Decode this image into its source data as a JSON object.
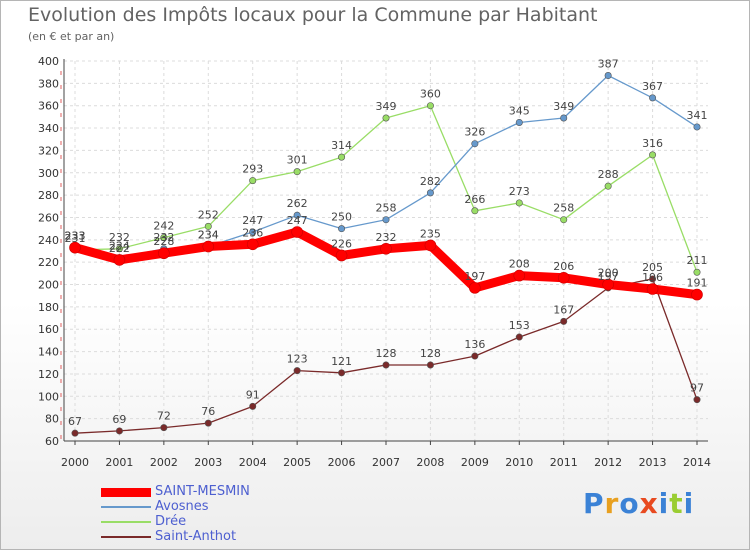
{
  "chart_data": {
    "type": "line",
    "title": "Evolution des Impôts locaux pour la Commune par Habitant",
    "subtitle": "(en € et par an)",
    "xlabel": "",
    "ylabel": "",
    "ylim": [
      60,
      400
    ],
    "y_ticks": [
      "60",
      "80",
      "100",
      "120",
      "140",
      "160",
      "180",
      "200",
      "220",
      "240",
      "260",
      "280",
      "300",
      "320",
      "340",
      "360",
      "380",
      "400"
    ],
    "categories": [
      "2000",
      "2001",
      "2002",
      "2003",
      "2004",
      "2005",
      "2006",
      "2007",
      "2008",
      "2009",
      "2010",
      "2011",
      "2012",
      "2013",
      "2014"
    ],
    "series": [
      {
        "name": "SAINT-MESMIN",
        "color": "#ff0000",
        "values": [
          233,
          222,
          228,
          234,
          236,
          247,
          226,
          232,
          235,
          197,
          208,
          206,
          200,
          196,
          191
        ],
        "labels": [
          "233",
          "222",
          "228",
          "234",
          "236",
          "247",
          "226",
          "232",
          "235",
          "197",
          "208",
          "206",
          "200",
          "196",
          "191"
        ]
      },
      {
        "name": "Avosnes",
        "color": "#6699cc",
        "values": [
          233,
          224,
          232,
          234,
          247,
          262,
          250,
          258,
          282,
          326,
          345,
          349,
          387,
          367,
          341
        ],
        "labels": [
          "233",
          "224",
          "232",
          "234",
          "247",
          "262",
          "250",
          "258",
          "282",
          "326",
          "345",
          "349",
          "387",
          "367",
          "341"
        ]
      },
      {
        "name": "Drée",
        "color": "#99dd66",
        "values": [
          231,
          232,
          242,
          252,
          293,
          301,
          314,
          349,
          360,
          266,
          273,
          258,
          288,
          316,
          211
        ],
        "labels": [
          "231",
          "232",
          "242",
          "252",
          "293",
          "301",
          "314",
          "349",
          "360",
          "266",
          "273",
          "258",
          "288",
          "316",
          "211"
        ]
      },
      {
        "name": "Saint-Anthot",
        "color": "#7a2a2a",
        "values": [
          67,
          69,
          72,
          76,
          91,
          123,
          121,
          128,
          128,
          136,
          153,
          167,
          197,
          205,
          97
        ],
        "labels": [
          "67",
          "69",
          "72",
          "76",
          "91",
          "123",
          "121",
          "128",
          "128",
          "136",
          "153",
          "167",
          "197",
          "205",
          "97"
        ]
      }
    ],
    "legend_position": "bottom-left"
  },
  "branding": {
    "logo_text": "Proxiti"
  }
}
